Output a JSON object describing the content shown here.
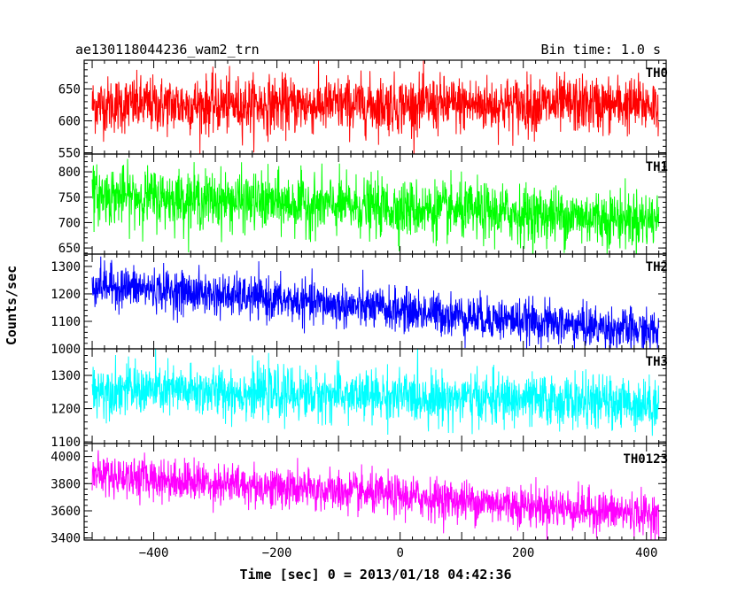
{
  "chart_data": {
    "type": "line",
    "title": "ae130118044236_wam2_trn",
    "subtitle": "Bin time: 1.0 s",
    "xlabel": "Time [sec] 0 = 2013/01/18 04:42:36",
    "ylabel": "Counts/sec",
    "xlim": [
      -513,
      432
    ],
    "xticks": [
      -400,
      -200,
      0,
      200,
      400
    ],
    "xtick_labels": [
      "−400",
      "−200",
      "0",
      "200",
      "400"
    ],
    "grid": false,
    "panels": [
      {
        "name": "TH0",
        "color": "#ff0000",
        "ylim": [
          548,
          695
        ],
        "yticks": [
          550,
          600,
          650
        ],
        "x_range": [
          -500,
          420
        ],
        "mean_start": 625,
        "mean_end": 625,
        "noise": 22
      },
      {
        "name": "TH1",
        "color": "#00ff00",
        "ylim": [
          638,
          835
        ],
        "yticks": [
          650,
          700,
          750,
          800
        ],
        "x_range": [
          -500,
          420
        ],
        "mean_start": 755,
        "mean_end": 705,
        "noise": 28
      },
      {
        "name": "TH2",
        "color": "#0000ff",
        "ylim": [
          1000,
          1345
        ],
        "yticks": [
          1000,
          1100,
          1200,
          1300
        ],
        "x_range": [
          -500,
          420
        ],
        "mean_start": 1235,
        "mean_end": 1060,
        "noise": 38
      },
      {
        "name": "TH3",
        "color": "#00ffff",
        "ylim": [
          1095,
          1380
        ],
        "yticks": [
          1100,
          1200,
          1300
        ],
        "x_range": [
          -500,
          420
        ],
        "mean_start": 1260,
        "mean_end": 1215,
        "noise": 38
      },
      {
        "name": "TH0123",
        "color": "#ff00ff",
        "ylim": [
          3385,
          4095
        ],
        "yticks": [
          3400,
          3600,
          3800,
          4000
        ],
        "x_range": [
          -500,
          420
        ],
        "mean_start": 3870,
        "mean_end": 3570,
        "noise": 75
      }
    ]
  }
}
